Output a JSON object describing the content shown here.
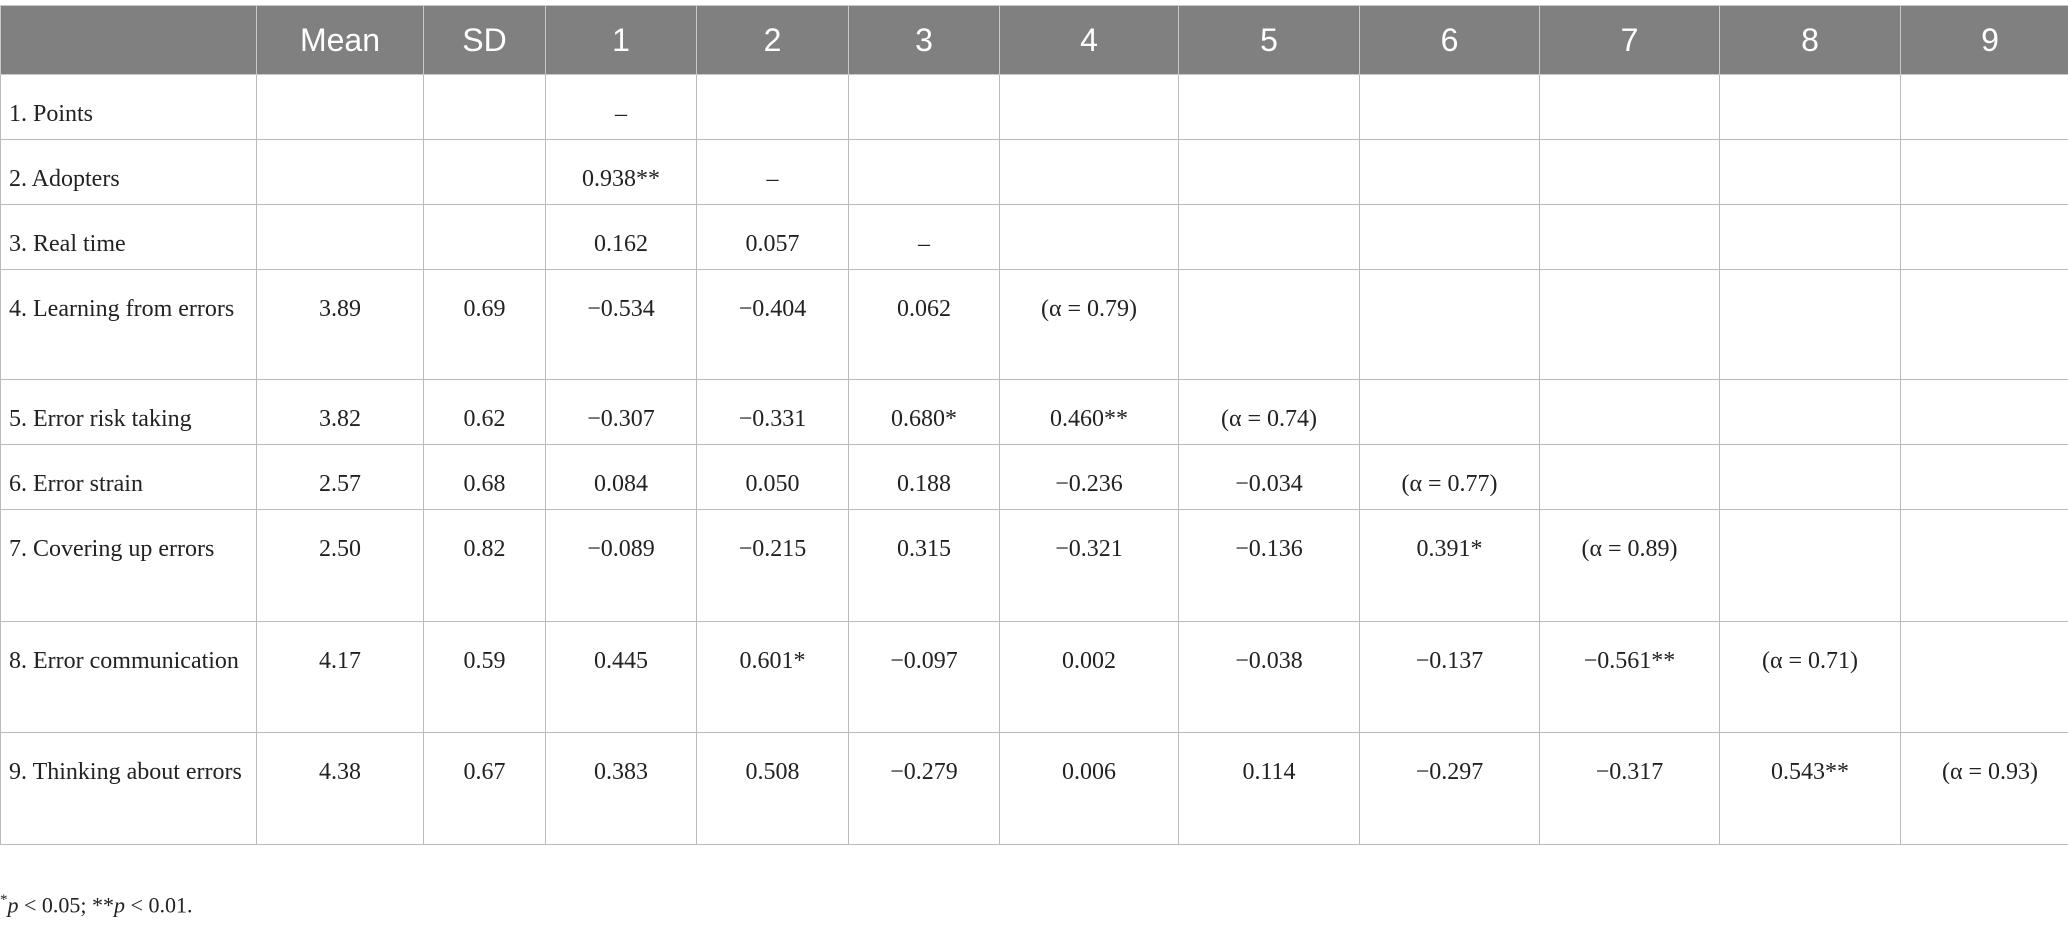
{
  "table": {
    "header": [
      "Mean",
      "SD",
      "1",
      "2",
      "3",
      "4",
      "5",
      "6",
      "7",
      "8",
      "9"
    ],
    "rows": [
      [
        "1. Points",
        null,
        null,
        "–",
        null,
        null,
        null,
        null,
        null,
        null,
        null,
        null
      ],
      [
        "2. Adopters",
        null,
        null,
        "0.938**",
        "–",
        null,
        null,
        null,
        null,
        null,
        null,
        null
      ],
      [
        "3. Real time",
        null,
        null,
        "0.162",
        "0.057",
        "–",
        null,
        null,
        null,
        null,
        null,
        null
      ],
      [
        "4. Learning from errors",
        "3.89",
        "0.69",
        "−0.534",
        "−0.404",
        "0.062",
        "(α = 0.79)",
        null,
        null,
        null,
        null,
        null
      ],
      [
        "5. Error risk taking",
        "3.82",
        "0.62",
        "−0.307",
        "−0.331",
        "0.680*",
        "0.460**",
        "(α = 0.74)",
        null,
        null,
        null,
        null
      ],
      [
        "6. Error strain",
        "2.57",
        "0.68",
        "0.084",
        "0.050",
        "0.188",
        "−0.236",
        "−0.034",
        "(α = 0.77)",
        null,
        null,
        null
      ],
      [
        "7. Covering up errors",
        "2.50",
        "0.82",
        "−0.089",
        "−0.215",
        "0.315",
        "−0.321",
        "−0.136",
        "0.391*",
        "(α = 0.89)",
        null,
        null
      ],
      [
        "8. Error communication",
        "4.17",
        "0.59",
        "0.445",
        "0.601*",
        "−0.097",
        "0.002",
        "−0.038",
        "−0.137",
        "−0.561**",
        "(α = 0.71)",
        null
      ],
      [
        "9. Thinking about errors",
        "4.38",
        "0.67",
        "0.383",
        "0.508",
        "−0.279",
        "0.006",
        "0.114",
        "−0.297",
        "−0.317",
        "0.543**",
        "(α = 0.93)"
      ]
    ]
  },
  "footnote": [
    "*",
    "p",
    " < 0.05; **",
    "p",
    " < 0.01."
  ]
}
